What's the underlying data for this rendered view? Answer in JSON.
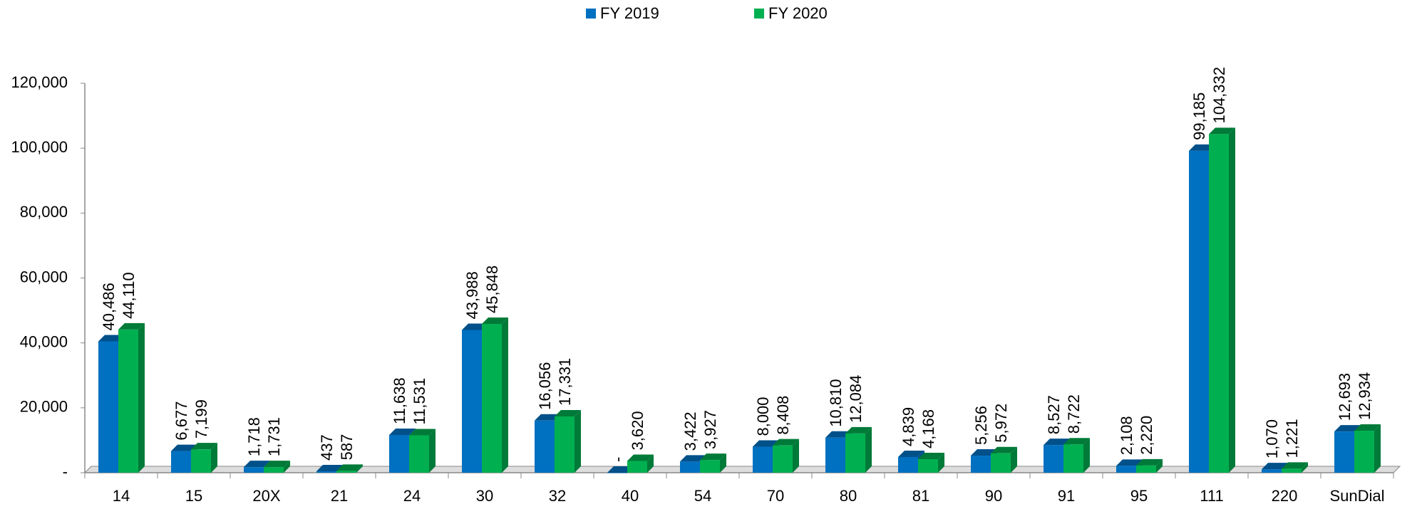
{
  "chart_data": {
    "type": "bar3d",
    "categories": [
      "14",
      "15",
      "20X",
      "21",
      "24",
      "30",
      "32",
      "40",
      "54",
      "70",
      "80",
      "81",
      "90",
      "91",
      "95",
      "111",
      "220",
      "SunDial"
    ],
    "series": [
      {
        "name": "FY 2019",
        "color": "#0070C0",
        "side": "#00508a",
        "values": [
          40486,
          6677,
          1718,
          437,
          11638,
          43988,
          16056,
          0,
          3422,
          8000,
          10810,
          4839,
          5256,
          8527,
          2108,
          99185,
          1070,
          12693
        ],
        "value_labels": [
          "40,486",
          "6,677",
          "1,718",
          "437",
          "11,638",
          "43,988",
          "16,056",
          "-",
          "3,422",
          "8,000",
          "10,810",
          "4,839",
          "5,256",
          "8,527",
          "2,108",
          "99,185",
          "1,070",
          "12,693"
        ]
      },
      {
        "name": "FY 2020",
        "color": "#00B050",
        "side": "#007a38",
        "values": [
          44110,
          7199,
          1731,
          587,
          11531,
          45848,
          17331,
          3620,
          3927,
          8408,
          12084,
          4168,
          5972,
          8722,
          2220,
          104332,
          1221,
          12934
        ],
        "value_labels": [
          "44,110",
          "7,199",
          "1,731",
          "587",
          "11,531",
          "45,848",
          "17,331",
          "3,620",
          "3,927",
          "8,408",
          "12,084",
          "4,168",
          "5,972",
          "8,722",
          "2,220",
          "104,332",
          "1,221",
          "12,934"
        ]
      }
    ],
    "ylim": [
      0,
      120000
    ],
    "yticks": [
      {
        "value": 0,
        "label": "-"
      },
      {
        "value": 20000,
        "label": "20,000"
      },
      {
        "value": 40000,
        "label": "40,000"
      },
      {
        "value": 60000,
        "label": "60,000"
      },
      {
        "value": 80000,
        "label": "80,000"
      },
      {
        "value": 100000,
        "label": "100,000"
      },
      {
        "value": 120000,
        "label": "120,000"
      }
    ],
    "grid": false,
    "legend": "top"
  }
}
